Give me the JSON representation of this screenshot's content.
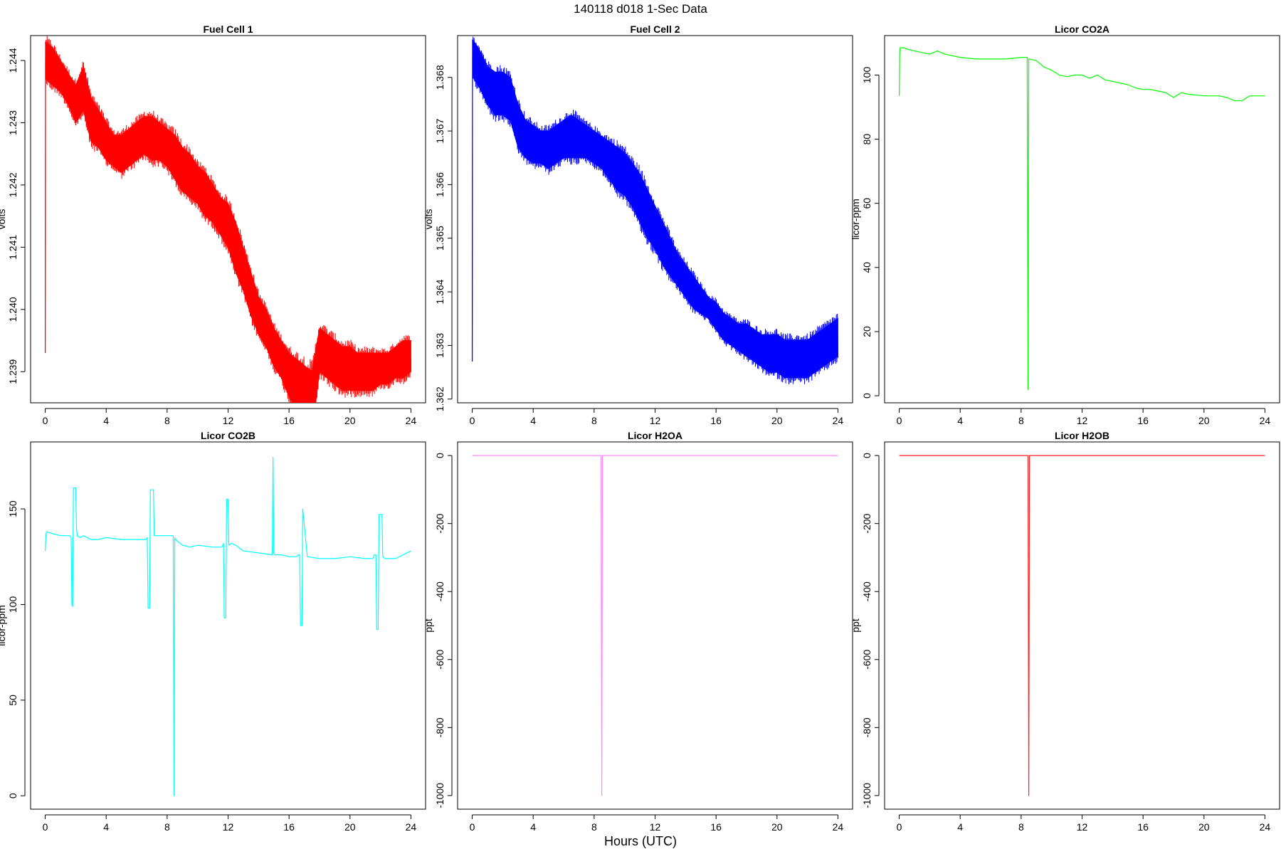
{
  "figure": {
    "title": "140118   d018   1-Sec Data",
    "xlabel": "Hours (UTC)"
  },
  "chart_data": [
    {
      "id": "fc1",
      "type": "line",
      "title": "Fuel Cell 1",
      "ylabel": "volts",
      "color": "#ff0000",
      "band": true,
      "xlim": [
        -0.96,
        24.96
      ],
      "ylim": [
        1.2385,
        1.2444
      ],
      "xticks": [
        0,
        4,
        8,
        12,
        16,
        20,
        24
      ],
      "yticks": [
        1.239,
        1.24,
        1.241,
        1.242,
        1.243,
        1.244
      ],
      "ytick_labels": [
        "1.239",
        "1.240",
        "1.241",
        "1.242",
        "1.243",
        "1.244"
      ],
      "series": [
        {
          "x": [
            0,
            0.02,
            0.05,
            0.5,
            1.0,
            1.5,
            2.0,
            2.5,
            3.0,
            3.5,
            4.0,
            4.5,
            5.0,
            5.5,
            6.0,
            6.5,
            7.0,
            7.5,
            8.0,
            8.5,
            9.0,
            9.5,
            10.0,
            10.5,
            11.0,
            11.5,
            12.0,
            12.5,
            13.0,
            13.5,
            14.0,
            14.5,
            15.0,
            15.5,
            16.0,
            16.5,
            17.0,
            17.5,
            18.0,
            18.5,
            19.0,
            19.5,
            20.0,
            20.5,
            21.0,
            21.5,
            22.0,
            22.5,
            23.0,
            23.5,
            24.0
          ],
          "lo": [
            1.2393,
            1.2437,
            1.2437,
            1.2436,
            1.2435,
            1.2433,
            1.243,
            1.2432,
            1.2427,
            1.2426,
            1.2424,
            1.2423,
            1.2422,
            1.2423,
            1.2424,
            1.2425,
            1.2424,
            1.2424,
            1.2423,
            1.2421,
            1.2419,
            1.2418,
            1.2417,
            1.2415,
            1.2414,
            1.2412,
            1.241,
            1.2406,
            1.2403,
            1.2399,
            1.2396,
            1.2394,
            1.2391,
            1.2389,
            1.2386,
            1.2384,
            1.2381,
            1.238,
            1.239,
            1.2389,
            1.2388,
            1.2387,
            1.2387,
            1.2387,
            1.2387,
            1.2387,
            1.2388,
            1.2388,
            1.2389,
            1.2389,
            1.239
          ],
          "hi": [
            1.2393,
            1.2443,
            1.2443,
            1.2442,
            1.244,
            1.2438,
            1.2436,
            1.2439,
            1.2434,
            1.2432,
            1.243,
            1.2428,
            1.2428,
            1.2429,
            1.243,
            1.2431,
            1.2431,
            1.243,
            1.2429,
            1.2428,
            1.2426,
            1.2425,
            1.2423,
            1.2422,
            1.242,
            1.2418,
            1.2417,
            1.2414,
            1.241,
            1.2406,
            1.2402,
            1.24,
            1.2397,
            1.2395,
            1.2393,
            1.2392,
            1.2391,
            1.239,
            1.2397,
            1.2396,
            1.2395,
            1.2394,
            1.2394,
            1.2393,
            1.2393,
            1.2393,
            1.2393,
            1.2393,
            1.2394,
            1.2395,
            1.2395
          ]
        }
      ]
    },
    {
      "id": "fc2",
      "type": "line",
      "title": "Fuel Cell 2",
      "ylabel": "volts",
      "color": "#0000ff",
      "band": true,
      "xlim": [
        -0.96,
        24.96
      ],
      "ylim": [
        1.36193,
        1.36878
      ],
      "xticks": [
        0,
        4,
        8,
        12,
        16,
        20,
        24
      ],
      "yticks": [
        1.362,
        1.363,
        1.364,
        1.365,
        1.366,
        1.367,
        1.368
      ],
      "ytick_labels": [
        "1.362",
        "1.363",
        "1.364",
        "1.365",
        "1.366",
        "1.367",
        "1.368"
      ],
      "series": [
        {
          "x": [
            0,
            0.02,
            0.05,
            0.5,
            1.0,
            1.5,
            2.0,
            2.5,
            3.0,
            3.5,
            4.0,
            4.5,
            5.0,
            5.5,
            6.0,
            6.5,
            7.0,
            7.5,
            8.0,
            8.5,
            9.0,
            9.5,
            10.0,
            10.5,
            11.0,
            11.5,
            12.0,
            12.5,
            13.0,
            13.5,
            14.0,
            14.5,
            15.0,
            15.5,
            16.0,
            16.5,
            17.0,
            17.5,
            18.0,
            18.5,
            19.0,
            19.5,
            20.0,
            20.5,
            21.0,
            21.5,
            22.0,
            22.5,
            23.0,
            23.5,
            24.0
          ],
          "lo": [
            1.3627,
            1.368,
            1.368,
            1.3678,
            1.3675,
            1.3673,
            1.3673,
            1.3672,
            1.3667,
            1.3665,
            1.3664,
            1.3664,
            1.3663,
            1.3664,
            1.3665,
            1.3665,
            1.3665,
            1.3665,
            1.3664,
            1.3663,
            1.3661,
            1.3659,
            1.3658,
            1.3656,
            1.3653,
            1.365,
            1.3648,
            1.3645,
            1.3643,
            1.3641,
            1.3639,
            1.3637,
            1.3636,
            1.3635,
            1.3633,
            1.3631,
            1.363,
            1.3629,
            1.3628,
            1.3627,
            1.3626,
            1.3625,
            1.3625,
            1.3624,
            1.3624,
            1.3624,
            1.3624,
            1.3625,
            1.3626,
            1.3627,
            1.3628
          ],
          "hi": [
            1.3627,
            1.3687,
            1.3687,
            1.3685,
            1.3682,
            1.3681,
            1.3681,
            1.368,
            1.3675,
            1.3672,
            1.3671,
            1.367,
            1.367,
            1.3671,
            1.3672,
            1.3673,
            1.3672,
            1.3671,
            1.367,
            1.3669,
            1.3668,
            1.3667,
            1.3666,
            1.3664,
            1.3662,
            1.3659,
            1.3656,
            1.3653,
            1.365,
            1.3647,
            1.3645,
            1.3643,
            1.3641,
            1.3639,
            1.3638,
            1.3636,
            1.3635,
            1.3634,
            1.3634,
            1.3633,
            1.3632,
            1.3632,
            1.3632,
            1.3631,
            1.3631,
            1.3631,
            1.3631,
            1.3632,
            1.3633,
            1.3634,
            1.3635
          ]
        }
      ]
    },
    {
      "id": "co2a",
      "type": "line",
      "title": "Licor CO2A",
      "ylabel": "licor-ppm",
      "color": "#00ff00",
      "band": false,
      "xlim": [
        -0.96,
        24.96
      ],
      "ylim": [
        -2.2,
        112.3
      ],
      "xticks": [
        0,
        4,
        8,
        12,
        16,
        20,
        24
      ],
      "yticks": [
        0,
        20,
        40,
        60,
        80,
        100
      ],
      "ytick_labels": [
        "0",
        "20",
        "40",
        "60",
        "80",
        "100"
      ],
      "series": [
        {
          "x": [
            0,
            0.03,
            0.06,
            0.3,
            0.6,
            1,
            1.5,
            2,
            2.5,
            3,
            3.5,
            4,
            5,
            6,
            7,
            8,
            8.4,
            8.45,
            8.5,
            8.55,
            9,
            9.5,
            10,
            10.5,
            11,
            11.5,
            12,
            12.5,
            13,
            13.5,
            14,
            14.5,
            15,
            15.5,
            16,
            16.5,
            17,
            17.5,
            18,
            18.5,
            19,
            20,
            21,
            21.5,
            22,
            22.5,
            23,
            23.5,
            24
          ],
          "y": [
            93.5,
            107,
            108.5,
            108.5,
            108,
            107.5,
            107,
            106.5,
            107.5,
            106.5,
            106,
            105.5,
            105,
            105,
            105,
            105.5,
            105.5,
            2,
            105,
            105,
            104.5,
            102.5,
            101.5,
            100,
            99.5,
            100,
            100,
            99,
            100,
            98.5,
            98,
            97.5,
            97,
            96,
            95.5,
            95.5,
            95,
            94.5,
            93,
            94.5,
            94,
            93.5,
            93.5,
            93,
            92,
            92,
            93.5,
            93.5,
            93.5
          ]
        }
      ]
    },
    {
      "id": "co2b",
      "type": "line",
      "title": "Licor CO2B",
      "ylabel": "licor-ppm",
      "color": "#00ffff",
      "band": false,
      "xlim": [
        -0.96,
        24.96
      ],
      "ylim": [
        -7,
        185
      ],
      "xticks": [
        0,
        4,
        8,
        12,
        16,
        20,
        24
      ],
      "yticks": [
        0,
        50,
        100,
        150
      ],
      "ytick_labels": [
        "0",
        "50",
        "100",
        "150"
      ],
      "series": [
        {
          "x": [
            0,
            0.05,
            0.1,
            0.5,
            1.0,
            1.6,
            1.7,
            1.75,
            1.8,
            1.85,
            2.0,
            2.05,
            2.1,
            2.3,
            2.5,
            3,
            3.5,
            4,
            5,
            6,
            6.6,
            6.7,
            6.75,
            6.85,
            6.9,
            7.1,
            7.15,
            7.3,
            8,
            8.4,
            8.45,
            8.5,
            8.55,
            9,
            9.5,
            10,
            11,
            11.6,
            11.7,
            11.75,
            11.85,
            11.9,
            12.0,
            12.05,
            12.2,
            12.5,
            13,
            14,
            14.9,
            14.95,
            15.0,
            15.05,
            15.5,
            16,
            16.5,
            16.6,
            16.7,
            16.75,
            16.85,
            16.9,
            17.2,
            18,
            19,
            20,
            21,
            21.5,
            21.6,
            21.7,
            21.75,
            21.85,
            21.9,
            22.1,
            22.15,
            22.3,
            23,
            24
          ],
          "y": [
            128,
            137,
            138,
            137,
            136,
            136,
            135,
            100,
            99,
            161,
            161,
            140,
            136,
            135,
            136,
            134,
            134,
            135,
            134,
            134,
            134,
            135,
            98,
            98,
            160,
            160,
            136,
            136,
            136,
            136,
            0,
            135,
            134,
            131,
            130,
            131,
            130,
            130,
            132,
            93,
            93,
            155,
            155,
            131,
            132,
            131,
            128,
            127,
            126,
            177,
            127,
            126,
            126,
            125,
            125,
            126,
            126,
            89,
            89,
            150,
            125,
            124,
            124,
            125,
            124,
            124,
            126,
            126,
            87,
            87,
            147,
            147,
            125,
            124,
            124,
            128
          ]
        }
      ]
    },
    {
      "id": "h2oa",
      "type": "line",
      "title": "Licor H2OA",
      "ylabel": "ppt",
      "color": "#ff88ff",
      "band": false,
      "xlim": [
        -0.96,
        24.96
      ],
      "ylim": [
        -1040,
        40
      ],
      "xticks": [
        0,
        4,
        8,
        12,
        16,
        20,
        24
      ],
      "yticks": [
        0,
        -200,
        -400,
        -600,
        -800,
        -1000
      ],
      "ytick_labels": [
        "0",
        "-200",
        "-400",
        "-600",
        "-800",
        "-1000"
      ],
      "series": [
        {
          "x": [
            0,
            8.45,
            8.5,
            8.55,
            24
          ],
          "y": [
            0,
            0,
            -1000,
            0,
            0
          ]
        }
      ]
    },
    {
      "id": "h2ob",
      "type": "line",
      "title": "Licor H2OB",
      "ylabel": "ppt",
      "color": "#ff2222",
      "band": false,
      "xlim": [
        -0.96,
        24.96
      ],
      "ylim": [
        -1040,
        40
      ],
      "xticks": [
        0,
        4,
        8,
        12,
        16,
        20,
        24
      ],
      "yticks": [
        0,
        -200,
        -400,
        -600,
        -800,
        -1000
      ],
      "ytick_labels": [
        "0",
        "-200",
        "-400",
        "-600",
        "-800",
        "-1000"
      ],
      "series": [
        {
          "x": [
            0,
            8.45,
            8.5,
            8.55,
            24
          ],
          "y": [
            0,
            0,
            -1000,
            0,
            0
          ]
        }
      ]
    }
  ]
}
